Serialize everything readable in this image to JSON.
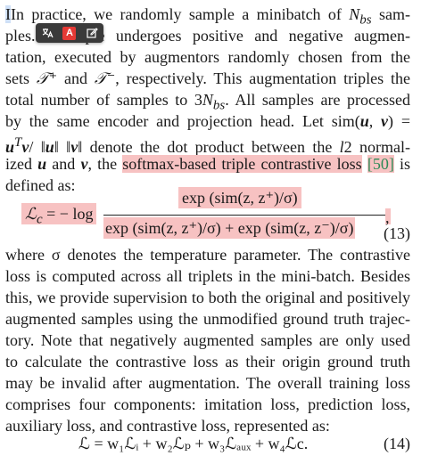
{
  "toolbar": {
    "icons": [
      "translate-icon",
      "highlight-icon",
      "edit-icon"
    ],
    "highlight_letter": "A"
  },
  "para1": {
    "l1_a": "In practice, we randomly sample a minibatch of ",
    "l1_var": "N",
    "l1_sub": "bs",
    "l1_b": " sam-",
    "l2_a": "ples.",
    "l2_b": "mple undergoes positive and negative augmen-",
    "l3_a": "tation, executed by augmentors randomly chosen from the",
    "l4_a": "sets ",
    "l4_tplus": "𝒯⁺",
    "l4_b": " and ",
    "l4_tminus": "𝒯⁻",
    "l4_c": ", respectively. This augmentation triples the",
    "l5_a": "total number of samples to 3",
    "l5_var": "N",
    "l5_sub": "bs",
    "l5_b": ". All samples are processed",
    "l6_a": "by the same encoder and projection head. Let sim(",
    "l6_u": "u",
    "l6_comma": ", ",
    "l6_v": "v",
    "l6_b": ") =",
    "l7_a": "u",
    "l7_t": "T",
    "l7_b": "v",
    "l7_c": "/ ‖",
    "l7_d": "u",
    "l7_e": "‖ ‖",
    "l7_f": "v",
    "l7_g": "‖ denote the dot product between the ",
    "l7_h": "l",
    "l7_i": "2 normal-",
    "l8_a": "ized ",
    "l8_u": "u",
    "l8_b": " and ",
    "l8_v": "v",
    "l8_c": ", the ",
    "l8_hl": "softmax-based triple contrastive loss",
    "l8_d": " ",
    "l8_cite": "[50]",
    "l8_e": " is",
    "l9_a": "defined as:"
  },
  "eq13": {
    "lhs": "ℒ",
    "lhs_sub": "c",
    "lhs_rest": " = − log",
    "numerator": "exp (sim(z, z⁺)/σ)",
    "denominator": "exp (sim(z, z⁺)/σ) + exp (sim(z, z⁻)/σ)",
    "tail": ",",
    "number": "(13)"
  },
  "para2": {
    "lines": [
      "where σ denotes the temperature parameter. The contrastive",
      "loss is computed across all triplets in the mini-batch. Besides",
      "this, we provide supervision to both the original and positively",
      "augmented samples using the unmodified ground truth trajec-",
      "tory. Note that negatively augmented samples are only used",
      "to calculate the contrastive loss as their origin ground truth",
      "may be invalid after augmentation. The overall training loss",
      "comprises four components: imitation loss, prediction loss,",
      "auxiliary loss, and contrastive loss, represented as:"
    ]
  },
  "eq14": {
    "expr": "ℒ = w₁ℒᵢ + w₂ℒₚ + w₃ℒₐᵤₓ + w₄ℒc.",
    "number": "(14)"
  },
  "colors": {
    "highlight": "#f7c2c2",
    "citation": "#2e8b57",
    "selection": "#cfe0f7",
    "toolbar_bg": "#3a3a3a",
    "toolbar_red": "#e53935"
  }
}
